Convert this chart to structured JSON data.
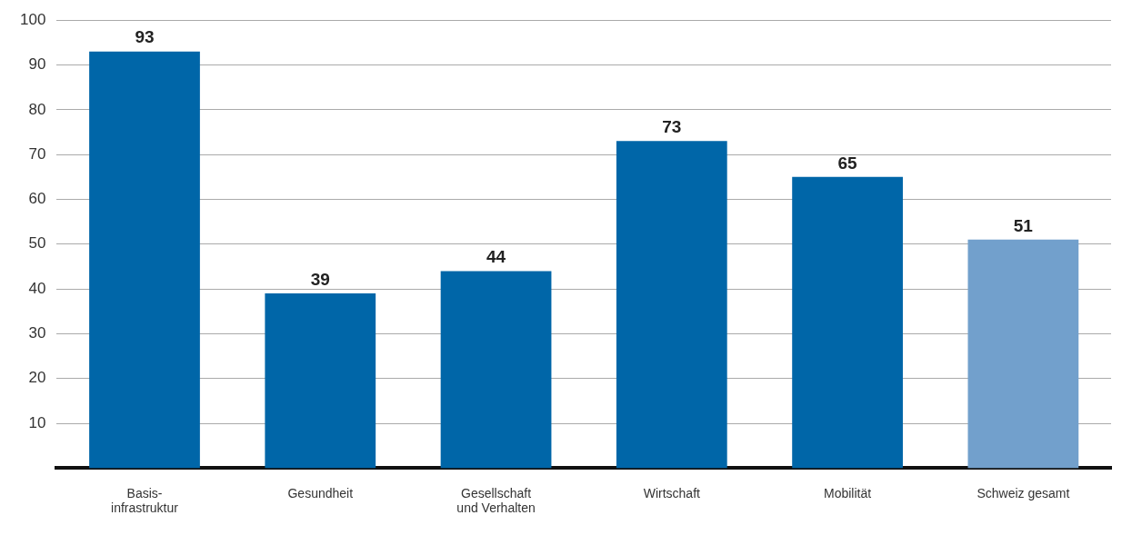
{
  "chart_data": {
    "type": "bar",
    "categories": [
      "Basis-\ninfrastruktur",
      "Gesundheit",
      "Gesellschaft\nund Verhalten",
      "Wirtschaft",
      "Mobilität",
      "Schweiz gesamt"
    ],
    "values": [
      93,
      39,
      44,
      73,
      65,
      51
    ],
    "colors": [
      "#0066a8",
      "#0066a8",
      "#0066a8",
      "#0066a8",
      "#0066a8",
      "#72a0cc"
    ],
    "ylim": [
      0,
      100
    ],
    "yticks": [
      10,
      20,
      30,
      40,
      50,
      60,
      70,
      80,
      90,
      100
    ],
    "grid": "y",
    "data_labels": true
  }
}
